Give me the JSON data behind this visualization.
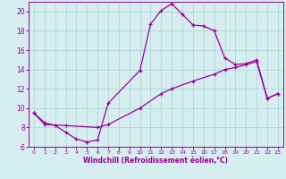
{
  "xlabel": "Windchill (Refroidissement éolien,°C)",
  "xlim": [
    -0.5,
    23.5
  ],
  "ylim": [
    6,
    21
  ],
  "xticks": [
    0,
    1,
    2,
    3,
    4,
    5,
    6,
    7,
    8,
    9,
    10,
    11,
    12,
    13,
    14,
    15,
    16,
    17,
    18,
    19,
    20,
    21,
    22,
    23
  ],
  "yticks": [
    6,
    8,
    10,
    12,
    14,
    16,
    18,
    20
  ],
  "background_color": "#d6eef0",
  "line_color": "#990099",
  "grid_color": "#b0d8d8",
  "curve1_x": [
    0,
    1,
    2,
    3,
    4,
    5,
    6,
    7,
    10,
    11,
    12,
    13,
    14,
    15,
    16,
    17,
    18,
    19,
    20,
    21,
    22,
    23
  ],
  "curve1_y": [
    9.5,
    8.5,
    8.2,
    7.5,
    6.8,
    6.5,
    6.7,
    10.5,
    13.9,
    18.7,
    20.1,
    20.8,
    19.7,
    18.6,
    18.5,
    18.0,
    15.2,
    14.5,
    14.6,
    15.0,
    11.0,
    11.5
  ],
  "curve2_x": [
    0,
    1,
    3,
    6,
    7,
    10,
    12,
    13,
    15,
    17,
    18,
    19,
    20,
    21,
    22,
    23
  ],
  "curve2_y": [
    9.5,
    8.3,
    8.2,
    8.0,
    8.3,
    10.0,
    11.5,
    12.0,
    12.8,
    13.5,
    14.0,
    14.2,
    14.5,
    14.8,
    11.0,
    11.5
  ]
}
